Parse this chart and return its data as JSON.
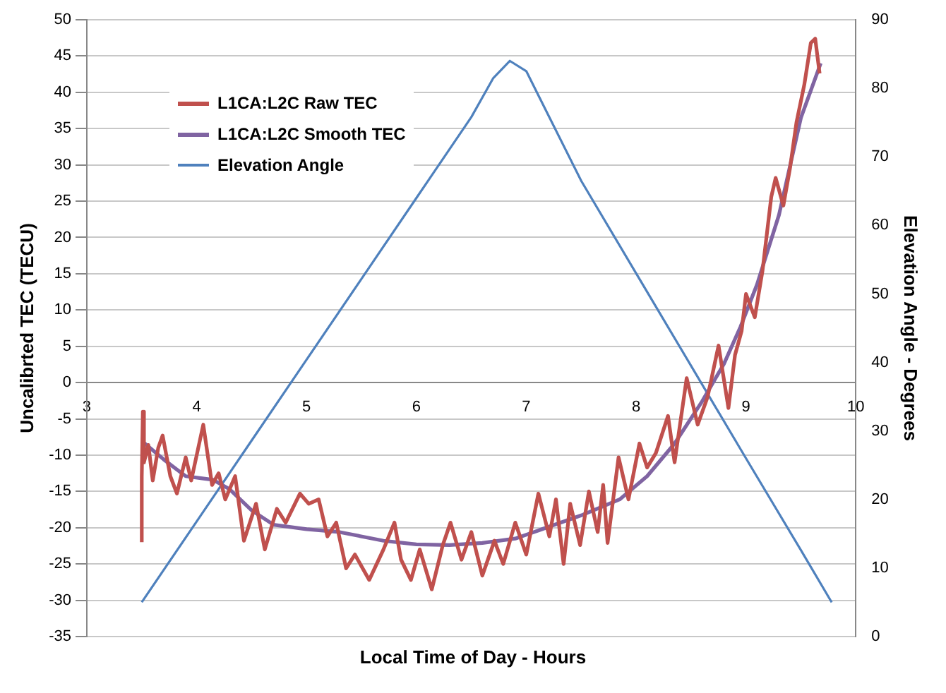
{
  "chart_data": {
    "type": "line",
    "xlabel": "Local Time of Day - Hours",
    "ylabel": "Uncalibrted TEC (TECU)",
    "y2label": "Elevation Angle - Degrees",
    "xlim": [
      3,
      10
    ],
    "xticks": [
      3,
      4,
      5,
      6,
      7,
      8,
      9,
      10
    ],
    "ylim": [
      -35,
      50
    ],
    "yticks": [
      -35,
      -30,
      -25,
      -20,
      -15,
      -10,
      -5,
      0,
      5,
      10,
      15,
      20,
      25,
      30,
      35,
      40,
      45,
      50
    ],
    "y2lim": [
      0,
      90
    ],
    "y2ticks": [
      0,
      10,
      20,
      30,
      40,
      50,
      60,
      70,
      80,
      90
    ],
    "grid": "y",
    "legend": "top left",
    "marker": "none",
    "line_style": "solid",
    "series": [
      {
        "name": "L1CA:L2C Raw TEC",
        "color": "#c0504d",
        "x": [
          3.5,
          3.5,
          3.51,
          3.52,
          3.56,
          3.6,
          3.65,
          3.69,
          3.76,
          3.82,
          3.9,
          3.95,
          4.06,
          4.14,
          4.2,
          4.26,
          4.35,
          4.43,
          4.54,
          4.62,
          4.73,
          4.81,
          4.94,
          5.02,
          5.11,
          5.19,
          5.27,
          5.36,
          5.44,
          5.57,
          5.7,
          5.8,
          5.86,
          5.95,
          6.03,
          6.14,
          6.24,
          6.31,
          6.41,
          6.5,
          6.6,
          6.71,
          6.79,
          6.9,
          7.0,
          7.11,
          7.21,
          7.27,
          7.34,
          7.4,
          7.49,
          7.57,
          7.65,
          7.7,
          7.74,
          7.84,
          7.93,
          8.03,
          8.1,
          8.18,
          8.29,
          8.35,
          8.46,
          8.56,
          8.65,
          8.75,
          8.84,
          8.9,
          8.96,
          9.0,
          9.08,
          9.15,
          9.23,
          9.27,
          9.34,
          9.4,
          9.46,
          9.53,
          9.59,
          9.63,
          9.67
        ],
        "values": [
          -22,
          -13,
          -4,
          -11,
          -8.6,
          -13.5,
          -9,
          -7.3,
          -12.9,
          -15.3,
          -10.3,
          -13.5,
          -5.8,
          -14.1,
          -12.5,
          -16.1,
          -12.9,
          -21.8,
          -16.7,
          -23,
          -17.4,
          -19.3,
          -15.3,
          -16.7,
          -16.1,
          -21.2,
          -19.3,
          -25.6,
          -23.7,
          -27.2,
          -23,
          -19.3,
          -24.4,
          -27.2,
          -23,
          -28.5,
          -22.4,
          -19.3,
          -24.4,
          -20.6,
          -26.6,
          -21.8,
          -25,
          -19.3,
          -23.7,
          -15.3,
          -21.2,
          -16.1,
          -25,
          -16.7,
          -22.4,
          -15,
          -20.6,
          -14.1,
          -22.1,
          -10.3,
          -16.1,
          -8.4,
          -11.7,
          -9.7,
          -4.6,
          -11,
          0.6,
          -5.8,
          -2,
          5.1,
          -3.5,
          3.8,
          7.1,
          12.2,
          9,
          15.4,
          25.6,
          28.2,
          24.4,
          29.5,
          35.9,
          41,
          46.8,
          47.4,
          42.6
        ]
      },
      {
        "name": "L1CA:L2C Smooth TEC",
        "color": "#8064a2",
        "x": [
          3.52,
          3.7,
          3.9,
          4.05,
          4.15,
          4.3,
          4.5,
          4.7,
          5.0,
          5.3,
          5.7,
          6.0,
          6.3,
          6.6,
          6.9,
          7.2,
          7.5,
          7.85,
          8.1,
          8.35,
          8.6,
          8.8,
          8.95,
          9.1,
          9.3,
          9.5,
          9.68
        ],
        "values": [
          -8.3,
          -10.6,
          -12.9,
          -13.2,
          -13.4,
          -14.7,
          -17.6,
          -19.6,
          -20.2,
          -20.6,
          -21.8,
          -22.3,
          -22.4,
          -22.1,
          -21.5,
          -19.9,
          -18.3,
          -16.1,
          -12.9,
          -8.4,
          -2.6,
          2.6,
          7.7,
          13.5,
          23.1,
          36.5,
          44
        ]
      },
      {
        "name": "Elevation Angle",
        "color": "#4f81bd",
        "axis": "y2",
        "x": [
          3.5,
          4,
          4.5,
          5,
          5.5,
          6,
          6.5,
          6.7,
          6.85,
          7.0,
          7.5,
          8,
          8.5,
          9,
          9.5,
          9.78
        ],
        "values": [
          5,
          16.8,
          28.6,
          40.4,
          52.2,
          64,
          75.8,
          81.5,
          84,
          82.5,
          66.5,
          53,
          39.5,
          26,
          12.6,
          5
        ]
      }
    ]
  }
}
